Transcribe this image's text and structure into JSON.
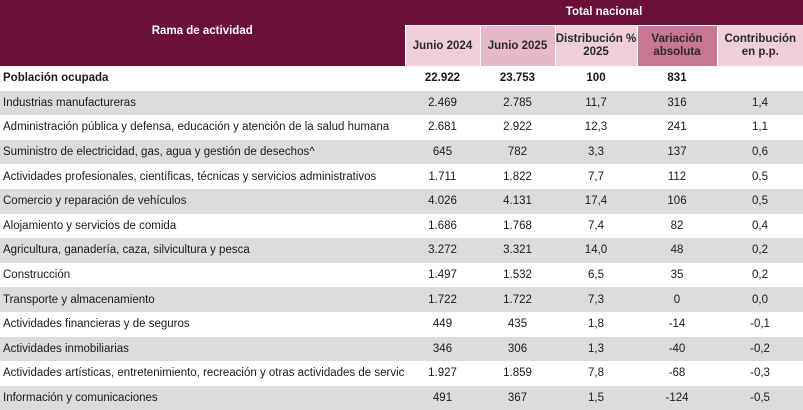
{
  "header": {
    "rama": "Rama de actividad",
    "total_nacional": "Total nacional",
    "junio_2024": "Junio 2024",
    "junio_2025": "Junio 2025",
    "distribucion": "Distribución % 2025",
    "variacion": "Variación absoluta",
    "contribucion": "Contribución en p.p."
  },
  "total": {
    "label": "Población ocupada",
    "j24": "22.922",
    "j25": "23.753",
    "dist": "100",
    "var": "831",
    "contrib": ""
  },
  "rows": [
    {
      "label": "Industrias manufactureras",
      "j24": "2.469",
      "j25": "2.785",
      "dist": "11,7",
      "var": "316",
      "contrib": "1,4"
    },
    {
      "label": "Administración pública y defensa, educación y atención de la salud humana",
      "j24": "2.681",
      "j25": "2.922",
      "dist": "12,3",
      "var": "241",
      "contrib": "1,1"
    },
    {
      "label": "Suministro de electricidad, gas, agua y gestión de desechos^",
      "j24": "645",
      "j25": "782",
      "dist": "3,3",
      "var": "137",
      "contrib": "0,6"
    },
    {
      "label": "Actividades profesionales, científicas, técnicas y servicios administrativos",
      "j24": "1.711",
      "j25": "1.822",
      "dist": "7,7",
      "var": "112",
      "contrib": "0,5"
    },
    {
      "label": "Comercio y reparación de vehículos",
      "j24": "4.026",
      "j25": "4.131",
      "dist": "17,4",
      "var": "106",
      "contrib": "0,5"
    },
    {
      "label": "Alojamiento y servicios de comida",
      "j24": "1.686",
      "j25": "1.768",
      "dist": "7,4",
      "var": "82",
      "contrib": "0,4"
    },
    {
      "label": "Agricultura, ganadería, caza, silvicultura y pesca",
      "j24": "3.272",
      "j25": "3.321",
      "dist": "14,0",
      "var": "48",
      "contrib": "0,2"
    },
    {
      "label": "Construcción",
      "j24": "1.497",
      "j25": "1.532",
      "dist": "6,5",
      "var": "35",
      "contrib": "0,2"
    },
    {
      "label": "Transporte y almacenamiento",
      "j24": "1.722",
      "j25": "1.722",
      "dist": "7,3",
      "var": "0",
      "contrib": "0,0"
    },
    {
      "label": "Actividades financieras y de seguros",
      "j24": "449",
      "j25": "435",
      "dist": "1,8",
      "var": "-14",
      "contrib": "-0,1"
    },
    {
      "label": "Actividades inmobiliarias",
      "j24": "346",
      "j25": "306",
      "dist": "1,3",
      "var": "-40",
      "contrib": "-0,2"
    },
    {
      "label": "Actividades artísticas, entretenimiento, recreación y otras actividades de servicios",
      "j24": "1.927",
      "j25": "1.859",
      "dist": "7,8",
      "var": "-68",
      "contrib": "-0,3"
    },
    {
      "label": "Información y comunicaciones",
      "j24": "491",
      "j25": "367",
      "dist": "1,5",
      "var": "-124",
      "contrib": "-0,5"
    }
  ]
}
